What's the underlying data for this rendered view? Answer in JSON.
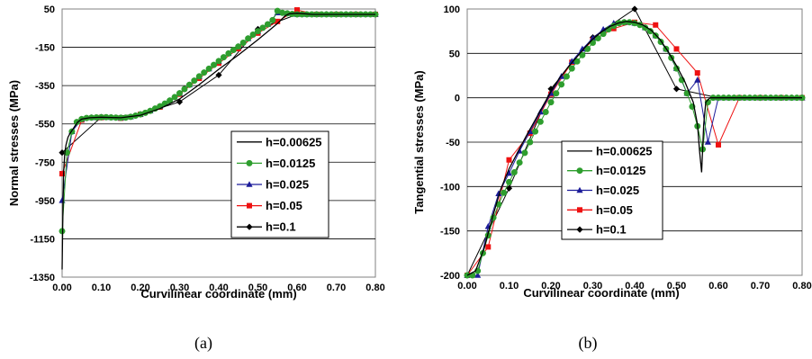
{
  "colors": {
    "h=0.00625": "#000000",
    "h=0.0125": "#2e9e2e",
    "h=0.025": "#1c1c9a",
    "h=0.05": "#ee1111",
    "h=0.1": "#000000"
  },
  "chart_data": [
    {
      "type": "line",
      "caption": "(a)",
      "xlabel": "Curvilinear coordinate  (mm)",
      "ylabel": "Normal stresses (MPa)",
      "xlim": [
        0,
        0.8
      ],
      "ylim": [
        -1350,
        50
      ],
      "xticks": [
        "0.00",
        "0.10",
        "0.20",
        "0.30",
        "0.40",
        "0.50",
        "0.60",
        "0.70",
        "0.80"
      ],
      "yticks": [
        "50",
        "-150",
        "-350",
        "-550",
        "-750",
        "-950",
        "-1150",
        "-1350"
      ],
      "grid": "horizontal",
      "legend_position": "center-right",
      "series": [
        {
          "name": "h=0.00625",
          "marker": "none",
          "x": [
            0.0,
            0.002,
            0.004,
            0.007,
            0.01,
            0.015,
            0.02,
            0.03,
            0.04,
            0.05,
            0.07,
            0.1,
            0.15,
            0.2,
            0.25,
            0.3,
            0.35,
            0.4,
            0.45,
            0.5,
            0.53,
            0.55,
            0.56,
            0.57,
            0.58,
            0.6,
            0.62,
            0.64,
            0.66,
            0.7,
            0.75,
            0.8
          ],
          "y": [
            -1310,
            -1000,
            -800,
            -700,
            -660,
            -620,
            -600,
            -570,
            -540,
            -525,
            -518,
            -515,
            -518,
            -505,
            -470,
            -420,
            -345,
            -265,
            -190,
            -110,
            -60,
            -25,
            -5,
            15,
            25,
            28,
            25,
            22,
            22,
            22,
            22,
            22
          ]
        },
        {
          "name": "h=0.0125",
          "marker": "circle",
          "x": [
            0.0,
            0.0125,
            0.025,
            0.0375,
            0.05,
            0.0625,
            0.075,
            0.0875,
            0.1,
            0.1125,
            0.125,
            0.1375,
            0.15,
            0.1625,
            0.175,
            0.1875,
            0.2,
            0.2125,
            0.225,
            0.2375,
            0.25,
            0.2625,
            0.275,
            0.2875,
            0.3,
            0.3125,
            0.325,
            0.3375,
            0.35,
            0.3625,
            0.375,
            0.3875,
            0.4,
            0.4125,
            0.425,
            0.4375,
            0.45,
            0.4625,
            0.475,
            0.4875,
            0.5,
            0.5125,
            0.525,
            0.5375,
            0.55,
            0.5625,
            0.575,
            0.5875,
            0.6,
            0.6125,
            0.625,
            0.6375,
            0.65,
            0.6625,
            0.675,
            0.6875,
            0.7,
            0.7125,
            0.725,
            0.7375,
            0.75,
            0.7625,
            0.775,
            0.7875,
            0.8
          ],
          "y": [
            -1110,
            -700,
            -590,
            -540,
            -525,
            -519,
            -517,
            -516,
            -515,
            -515,
            -516,
            -517,
            -518,
            -517,
            -513,
            -507,
            -500,
            -492,
            -482,
            -470,
            -458,
            -444,
            -428,
            -410,
            -390,
            -368,
            -346,
            -324,
            -302,
            -282,
            -262,
            -242,
            -222,
            -202,
            -182,
            -164,
            -146,
            -126,
            -104,
            -84,
            -66,
            -48,
            -30,
            -8,
            40,
            30,
            27,
            24,
            22,
            22,
            22,
            22,
            22,
            22,
            22,
            22,
            22,
            22,
            22,
            22,
            22,
            22,
            22,
            22,
            22
          ]
        },
        {
          "name": "h=0.025",
          "marker": "triangle",
          "x": [
            0.0,
            0.025,
            0.05,
            0.075,
            0.1,
            0.125,
            0.15,
            0.175,
            0.2,
            0.225,
            0.25,
            0.275,
            0.3,
            0.325,
            0.35,
            0.375,
            0.4,
            0.425,
            0.45,
            0.475,
            0.5,
            0.525,
            0.55,
            0.575,
            0.6,
            0.625,
            0.65,
            0.675,
            0.7,
            0.725,
            0.75,
            0.775,
            0.8
          ],
          "y": [
            -950,
            -590,
            -525,
            -517,
            -515,
            -516,
            -518,
            -513,
            -500,
            -482,
            -458,
            -428,
            -390,
            -346,
            -302,
            -262,
            -222,
            -182,
            -146,
            -104,
            -66,
            -30,
            30,
            27,
            22,
            22,
            22,
            22,
            22,
            22,
            22,
            22,
            22
          ]
        },
        {
          "name": "h=0.05",
          "marker": "square",
          "x": [
            0.0,
            0.05,
            0.1,
            0.15,
            0.2,
            0.25,
            0.3,
            0.35,
            0.4,
            0.45,
            0.5,
            0.55,
            0.6,
            0.65,
            0.7,
            0.75,
            0.8
          ],
          "y": [
            -810,
            -530,
            -517,
            -520,
            -500,
            -462,
            -395,
            -312,
            -233,
            -157,
            -76,
            -15,
            45,
            22,
            22,
            22,
            22
          ]
        },
        {
          "name": "h=0.1",
          "marker": "diamond",
          "x": [
            0.0,
            0.1,
            0.2,
            0.3,
            0.4,
            0.5,
            0.6,
            0.7,
            0.8
          ],
          "y": [
            -700,
            -515,
            -500,
            -435,
            -295,
            -55,
            22,
            22,
            22
          ]
        }
      ]
    },
    {
      "type": "line",
      "caption": "(b)",
      "xlabel": "Curvilinear coordinate  (mm)",
      "ylabel": "Tangential stresses (MPa)",
      "xlim": [
        0,
        0.8
      ],
      "ylim": [
        -200,
        100
      ],
      "xticks": [
        "0.00",
        "0.10",
        "0.20",
        "0.30",
        "0.40",
        "0.50",
        "0.60",
        "0.70",
        "0.80"
      ],
      "yticks": [
        "100",
        "50",
        "0",
        "-50",
        "-100",
        "-150",
        "-200"
      ],
      "grid": "horizontal",
      "legend_position": "bottom-left",
      "series": [
        {
          "name": "h=0.00625",
          "marker": "none",
          "x": [
            0.0,
            0.02,
            0.04,
            0.06,
            0.08,
            0.1,
            0.12,
            0.14,
            0.16,
            0.18,
            0.2,
            0.22,
            0.24,
            0.26,
            0.28,
            0.3,
            0.32,
            0.34,
            0.36,
            0.38,
            0.4,
            0.42,
            0.44,
            0.46,
            0.48,
            0.5,
            0.52,
            0.54,
            0.55,
            0.555,
            0.56,
            0.565,
            0.57,
            0.58,
            0.6,
            0.65,
            0.7,
            0.8
          ],
          "y": [
            -200,
            -195,
            -170,
            -135,
            -103,
            -80,
            -62,
            -44,
            -27,
            -10,
            7,
            22,
            34,
            45,
            56,
            66,
            74,
            80,
            84,
            86,
            85,
            82,
            76,
            66,
            52,
            36,
            18,
            -5,
            -30,
            -60,
            -84,
            -30,
            -5,
            0,
            0,
            0,
            0,
            0
          ]
        },
        {
          "name": "h=0.0125",
          "marker": "circle",
          "x": [
            0.0,
            0.0125,
            0.025,
            0.0375,
            0.05,
            0.0625,
            0.075,
            0.0875,
            0.1,
            0.1125,
            0.125,
            0.1375,
            0.15,
            0.1625,
            0.175,
            0.1875,
            0.2,
            0.2125,
            0.225,
            0.2375,
            0.25,
            0.2625,
            0.275,
            0.2875,
            0.3,
            0.3125,
            0.325,
            0.3375,
            0.35,
            0.3625,
            0.375,
            0.3875,
            0.4,
            0.4125,
            0.425,
            0.4375,
            0.45,
            0.4625,
            0.475,
            0.4875,
            0.5,
            0.5125,
            0.525,
            0.5375,
            0.55,
            0.5625,
            0.575,
            0.5875,
            0.6,
            0.6125,
            0.625,
            0.6375,
            0.65,
            0.6625,
            0.675,
            0.6875,
            0.7,
            0.7125,
            0.725,
            0.7375,
            0.75,
            0.7625,
            0.775,
            0.7875,
            0.8
          ],
          "y": [
            -200,
            -200,
            -195,
            -175,
            -155,
            -135,
            -120,
            -107,
            -95,
            -84,
            -73,
            -62,
            -50,
            -38,
            -27,
            -16,
            -5,
            5,
            15,
            24,
            33,
            41,
            48,
            55,
            62,
            67,
            72,
            77,
            81,
            84,
            85,
            85,
            84,
            82,
            79,
            75,
            70,
            63,
            55,
            45,
            33,
            20,
            5,
            -10,
            -32,
            -58,
            -5,
            0,
            0,
            0,
            0,
            0,
            0,
            0,
            0,
            0,
            0,
            0,
            0,
            0,
            0,
            0,
            0,
            0,
            0
          ]
        },
        {
          "name": "h=0.025",
          "marker": "triangle",
          "x": [
            0.0,
            0.025,
            0.05,
            0.075,
            0.1,
            0.125,
            0.15,
            0.175,
            0.2,
            0.225,
            0.25,
            0.275,
            0.3,
            0.325,
            0.35,
            0.375,
            0.4,
            0.425,
            0.45,
            0.475,
            0.5,
            0.525,
            0.55,
            0.575,
            0.6,
            0.625,
            0.65,
            0.675,
            0.7,
            0.725,
            0.75,
            0.775,
            0.8
          ],
          "y": [
            -200,
            -200,
            -145,
            -108,
            -85,
            -60,
            -38,
            -16,
            5,
            24,
            41,
            55,
            67,
            77,
            84,
            85,
            84,
            79,
            70,
            55,
            33,
            5,
            20,
            -50,
            0,
            0,
            0,
            0,
            0,
            0,
            0,
            0,
            0
          ]
        },
        {
          "name": "h=0.05",
          "marker": "square",
          "x": [
            0.0,
            0.05,
            0.1,
            0.15,
            0.2,
            0.25,
            0.3,
            0.35,
            0.4,
            0.45,
            0.5,
            0.55,
            0.6,
            0.65,
            0.7,
            0.75,
            0.8
          ],
          "y": [
            -200,
            -168,
            -70,
            -40,
            4,
            40,
            65,
            78,
            85,
            82,
            55,
            28,
            -53,
            0,
            0,
            0,
            0
          ]
        },
        {
          "name": "h=0.1",
          "marker": "diamond",
          "x": [
            0.0,
            0.1,
            0.2,
            0.3,
            0.4,
            0.5,
            0.6,
            0.7,
            0.8
          ],
          "y": [
            -200,
            -102,
            10,
            68,
            100,
            10,
            0,
            0,
            0
          ]
        }
      ]
    }
  ]
}
